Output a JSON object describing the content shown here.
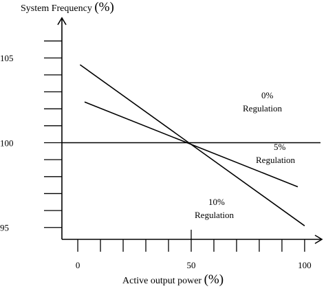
{
  "chart_data": {
    "type": "line",
    "ylabel": "System Frequency",
    "ylabel_unit": "(%)",
    "xlabel": "Active output power",
    "xlabel_unit": "(%)",
    "xlim": [
      -7,
      107
    ],
    "ylim": [
      94.3,
      107.2
    ],
    "x_ticks": [
      0,
      50,
      100
    ],
    "x_tick_labels": [
      "0",
      "50",
      "100"
    ],
    "y_ticks": [
      95,
      100,
      105
    ],
    "y_tick_labels": [
      "95",
      "100",
      "105"
    ],
    "grid": false,
    "legend": "none",
    "series": [
      {
        "annotation": [
          "0%",
          "Regulation"
        ],
        "x": [
          -7,
          107
        ],
        "y": [
          100,
          100
        ]
      },
      {
        "annotation": [
          "5%",
          "Regulation"
        ],
        "x": [
          3,
          97
        ],
        "y": [
          102.4,
          97.4
        ]
      },
      {
        "annotation": [
          "10%",
          "Regulation"
        ],
        "x": [
          1,
          100
        ],
        "y": [
          104.6,
          95.1
        ]
      }
    ]
  }
}
